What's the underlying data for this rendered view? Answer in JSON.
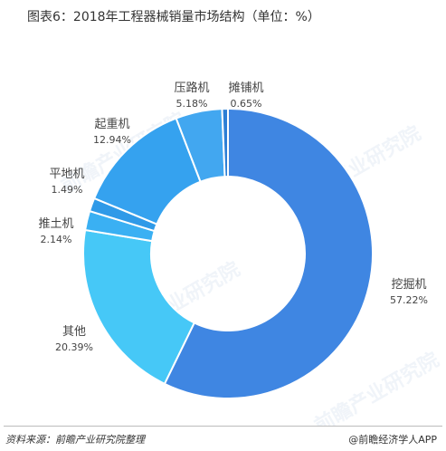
{
  "title": "图表6：2018年工程器械销量市场结构（单位：%）",
  "footer": {
    "source": "资料来源：前瞻产业研究院整理",
    "credit": "@前瞻经济学人APP"
  },
  "watermark": "前瞻产业研究院",
  "chart_data": {
    "type": "pie",
    "donut": true,
    "title": "图表6：2018年工程器械销量市场结构（单位：%）",
    "legend": "none",
    "slices": [
      {
        "name": "挖掘机",
        "value": 57.22,
        "label": "57.22%",
        "color": "#3f86e2"
      },
      {
        "name": "其他",
        "value": 20.39,
        "label": "20.39%",
        "color": "#46c8f7"
      },
      {
        "name": "推土机",
        "value": 2.14,
        "label": "2.14%",
        "color": "#3ab0f3"
      },
      {
        "name": "平地机",
        "value": 1.49,
        "label": "1.49%",
        "color": "#2f9ae8"
      },
      {
        "name": "起重机",
        "value": 12.94,
        "label": "12.94%",
        "color": "#35a2ef"
      },
      {
        "name": "压路机",
        "value": 5.18,
        "label": "5.18%",
        "color": "#42a7f0"
      },
      {
        "name": "摊铺机",
        "value": 0.65,
        "label": "0.65%",
        "color": "#2d7fd5"
      }
    ]
  }
}
